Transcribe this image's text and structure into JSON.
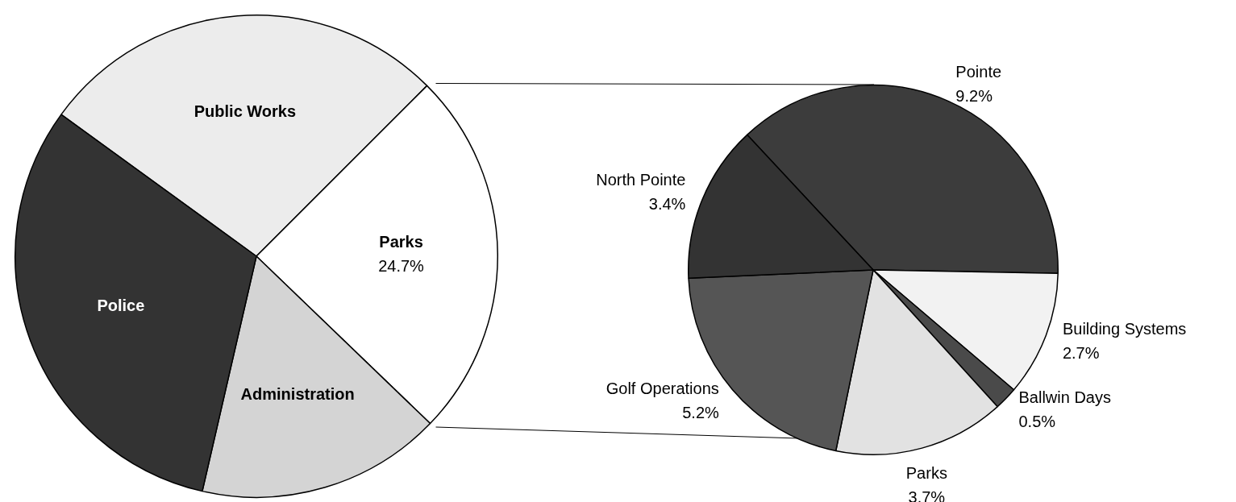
{
  "chart_data": [
    {
      "type": "pie",
      "categories": [
        "Public Works",
        "Parks",
        "Administration",
        "Police"
      ],
      "values": [
        27.5,
        24.7,
        16.4,
        31.4
      ],
      "colors": [
        "#ececec",
        "#ffffff",
        "#d4d4d4",
        "#333333"
      ],
      "value_labels": [
        null,
        "24.7%",
        null,
        null
      ],
      "legend": false
    },
    {
      "type": "pie",
      "categories": [
        "Pointe",
        "Building Systems",
        "Ballwin Days",
        "Parks",
        "Golf Operations",
        "North Pointe"
      ],
      "values": [
        9.2,
        2.7,
        0.5,
        3.7,
        5.2,
        3.4
      ],
      "colors": [
        "#3c3c3c",
        "#f2f2f2",
        "#4a4a4a",
        "#e2e2e2",
        "#555555",
        "#333333"
      ],
      "value_labels": [
        "9.2%",
        "2.7%",
        "0.5%",
        "3.7%",
        "5.2%",
        "3.4%"
      ],
      "legend": false
    }
  ]
}
